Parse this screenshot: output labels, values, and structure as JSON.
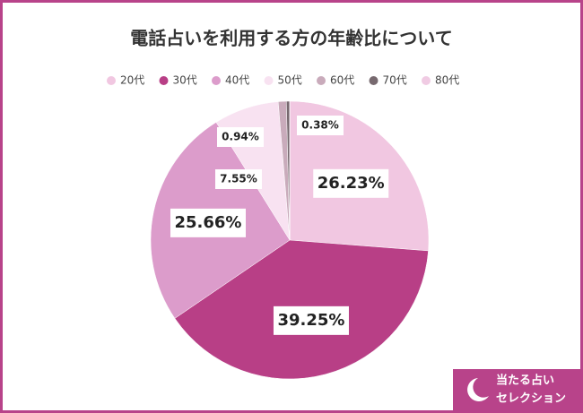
{
  "chart_data": {
    "type": "pie",
    "title": "電話占いを利用する方の年齢比について",
    "categories": [
      "20代",
      "30代",
      "40代",
      "50代",
      "60代",
      "70代",
      "80代"
    ],
    "values": [
      26.23,
      39.25,
      25.66,
      7.55,
      0.94,
      0.38,
      0
    ],
    "value_labels": [
      "26.23%",
      "39.25%",
      "25.66%",
      "7.55%",
      "0.94%",
      "0.38%",
      null
    ],
    "colors": [
      "#f1c7e1",
      "#b83f86",
      "#dc9ccb",
      "#f8e2f1",
      "#c9abbb",
      "#77696f",
      "#f0cbe3"
    ],
    "legend": "top"
  },
  "badge": {
    "line1": "当たる占い",
    "line2": "セレクション"
  }
}
